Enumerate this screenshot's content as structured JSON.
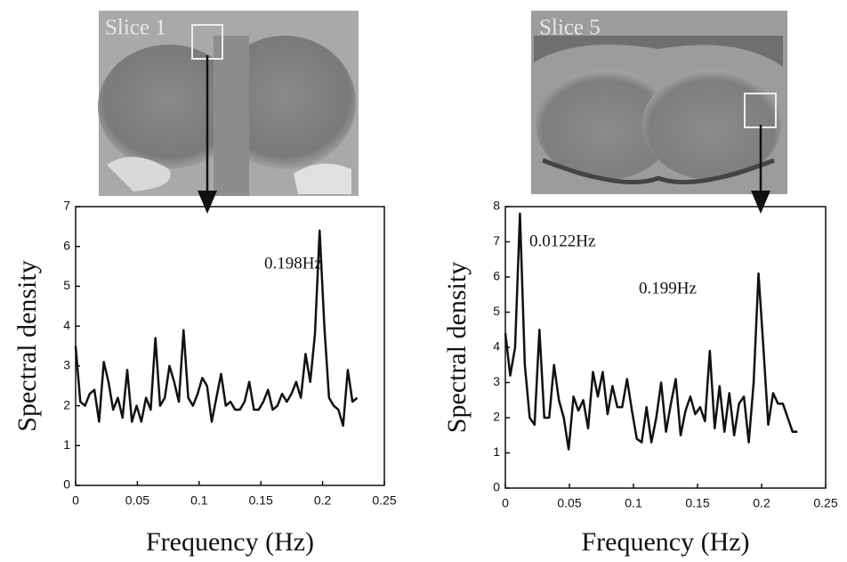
{
  "chart_data": [
    {
      "type": "line",
      "image_label": "Slice 1",
      "annotations": [
        "0.198Hz"
      ],
      "xlabel": "Frequency (Hz)",
      "ylabel": "Spectral density",
      "color": "#111111",
      "x": [
        0,
        0.0038,
        0.0076,
        0.0114,
        0.0152,
        0.019,
        0.0228,
        0.0266,
        0.0304,
        0.0342,
        0.038,
        0.0418,
        0.0456,
        0.0494,
        0.0532,
        0.057,
        0.0608,
        0.0646,
        0.0684,
        0.0722,
        0.076,
        0.0798,
        0.0836,
        0.0874,
        0.0912,
        0.095,
        0.0988,
        0.1026,
        0.1064,
        0.1102,
        0.114,
        0.1178,
        0.1216,
        0.1254,
        0.1292,
        0.133,
        0.1368,
        0.1406,
        0.1444,
        0.1482,
        0.152,
        0.1558,
        0.1596,
        0.1634,
        0.1672,
        0.171,
        0.1748,
        0.1786,
        0.1824,
        0.1862,
        0.19,
        0.1938,
        0.1976,
        0.2014,
        0.2052,
        0.209,
        0.2128,
        0.2166,
        0.2204,
        0.2242,
        0.228
      ],
      "values": [
        3.5,
        2.1,
        2.0,
        2.3,
        2.4,
        1.6,
        3.1,
        2.6,
        1.9,
        2.2,
        1.7,
        2.9,
        1.6,
        2.0,
        1.6,
        2.2,
        1.9,
        3.7,
        2.0,
        2.2,
        3.0,
        2.6,
        2.1,
        3.9,
        2.2,
        2.0,
        2.3,
        2.7,
        2.5,
        1.6,
        2.2,
        2.8,
        2.0,
        2.1,
        1.9,
        1.9,
        2.1,
        2.6,
        1.9,
        1.9,
        2.1,
        2.4,
        1.9,
        2.0,
        2.3,
        2.1,
        2.3,
        2.6,
        2.2,
        3.3,
        2.6,
        3.8,
        6.4,
        4.0,
        2.2,
        2.0,
        1.9,
        1.5,
        2.9,
        2.1,
        2.2
      ],
      "xlim": [
        0,
        0.25
      ],
      "xticks": [
        0,
        0.05,
        0.1,
        0.15,
        0.2,
        0.25
      ],
      "ylim": [
        0,
        7
      ],
      "yticks": [
        0,
        1,
        2,
        3,
        4,
        5,
        6,
        7
      ]
    },
    {
      "type": "line",
      "image_label": "Slice 5",
      "annotations": [
        "0.0122Hz",
        "0.199Hz"
      ],
      "xlabel": "Frequency (Hz)",
      "ylabel": "Spectral density",
      "color": "#111111",
      "x": [
        0,
        0.0038,
        0.0076,
        0.0114,
        0.0152,
        0.019,
        0.0228,
        0.0266,
        0.0304,
        0.0342,
        0.038,
        0.0418,
        0.0456,
        0.0494,
        0.0532,
        0.057,
        0.0608,
        0.0646,
        0.0684,
        0.0722,
        0.076,
        0.0798,
        0.0836,
        0.0874,
        0.0912,
        0.095,
        0.0988,
        0.1026,
        0.1064,
        0.1102,
        0.114,
        0.1178,
        0.1216,
        0.1254,
        0.1292,
        0.133,
        0.1368,
        0.1406,
        0.1444,
        0.1482,
        0.152,
        0.1558,
        0.1596,
        0.1634,
        0.1672,
        0.171,
        0.1748,
        0.1786,
        0.1824,
        0.1862,
        0.19,
        0.1938,
        0.1976,
        0.2014,
        0.2052,
        0.209,
        0.2128,
        0.2166,
        0.2204,
        0.2242,
        0.228
      ],
      "values": [
        4.4,
        3.2,
        4.0,
        7.8,
        3.5,
        2.0,
        1.8,
        4.5,
        2.0,
        2.0,
        3.5,
        2.5,
        2.0,
        1.1,
        2.6,
        2.2,
        2.5,
        1.7,
        3.3,
        2.6,
        3.3,
        2.1,
        2.9,
        2.3,
        2.3,
        3.1,
        2.2,
        1.4,
        1.3,
        2.3,
        1.3,
        2.0,
        3.0,
        1.6,
        2.4,
        3.1,
        1.5,
        2.2,
        2.6,
        2.1,
        2.3,
        1.9,
        3.9,
        1.7,
        2.9,
        1.6,
        2.7,
        1.5,
        2.4,
        2.6,
        1.3,
        3.0,
        6.1,
        4.0,
        1.8,
        2.7,
        2.4,
        2.4,
        2.0,
        1.6,
        1.6
      ],
      "xlim": [
        0,
        0.25
      ],
      "xticks": [
        0,
        0.05,
        0.1,
        0.15,
        0.2,
        0.25
      ],
      "ylim": [
        0,
        8
      ],
      "yticks": [
        0,
        1,
        2,
        3,
        4,
        5,
        6,
        7,
        8
      ]
    }
  ]
}
